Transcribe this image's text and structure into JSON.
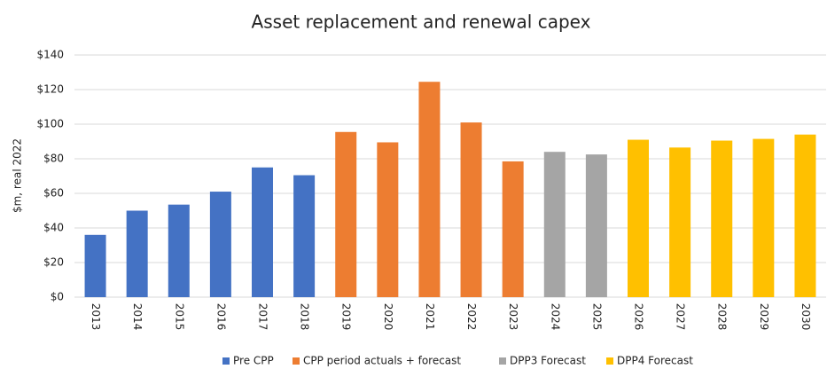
{
  "chart_data": {
    "type": "bar",
    "title": "Asset replacement and renewal capex",
    "y_label": "$m, real 2022",
    "categories": [
      "2013",
      "2014",
      "2015",
      "2016",
      "2017",
      "2018",
      "2019",
      "2020",
      "2021",
      "2022",
      "2023",
      "2024",
      "2025",
      "2026",
      "2027",
      "2028",
      "2029",
      "2030"
    ],
    "series": [
      {
        "name": "Pre CPP",
        "color": "#4472c4",
        "values": [
          36,
          50,
          53.5,
          61,
          75,
          70.5,
          null,
          null,
          null,
          null,
          null,
          null,
          null,
          null,
          null,
          null,
          null,
          null
        ]
      },
      {
        "name": "CPP period actuals + forecast",
        "color": "#ed7d31",
        "values": [
          null,
          null,
          null,
          null,
          null,
          null,
          95.5,
          89.5,
          124.5,
          101,
          78.5,
          null,
          null,
          null,
          null,
          null,
          null,
          null
        ]
      },
      {
        "name": "DPP3 Forecast",
        "color": "#a5a5a5",
        "values": [
          null,
          null,
          null,
          null,
          null,
          null,
          null,
          null,
          null,
          null,
          null,
          84,
          82.5,
          null,
          null,
          null,
          null,
          null
        ]
      },
      {
        "name": "DPP4 Forecast",
        "color": "#ffc000",
        "values": [
          null,
          null,
          null,
          null,
          null,
          null,
          null,
          null,
          null,
          null,
          null,
          null,
          null,
          91,
          86.5,
          90.5,
          91.5,
          94
        ]
      }
    ],
    "ylim": [
      0,
      140
    ],
    "yticks": [
      {
        "value": 0,
        "label": "$0"
      },
      {
        "value": 20,
        "label": "$20"
      },
      {
        "value": 40,
        "label": "$40"
      },
      {
        "value": 60,
        "label": "$60"
      },
      {
        "value": 80,
        "label": "$80"
      },
      {
        "value": 100,
        "label": "$100"
      },
      {
        "value": 120,
        "label": "$120"
      },
      {
        "value": 140,
        "label": "$140"
      }
    ],
    "grid": true,
    "legend": "bottom"
  }
}
